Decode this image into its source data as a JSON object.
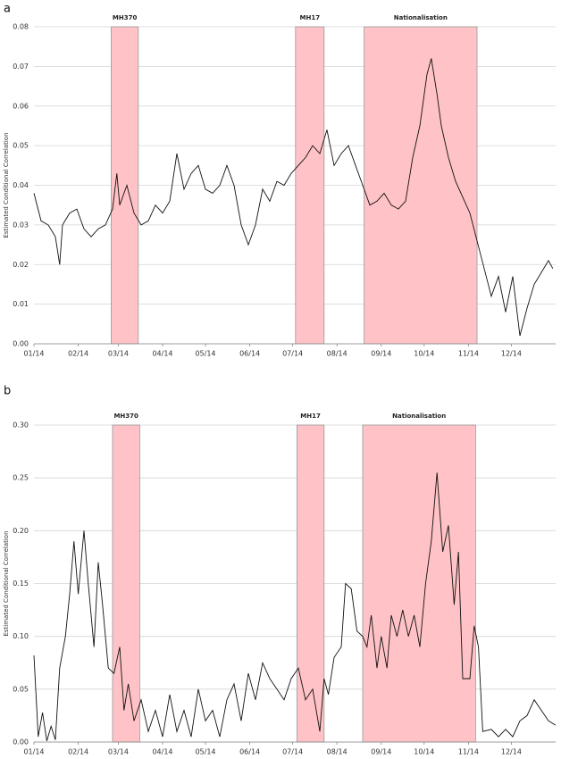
{
  "chart_data": [
    {
      "type": "line",
      "panel_label": "a",
      "ylabel": "Estimated Conditional Correlation",
      "xlim": [
        0,
        365
      ],
      "xticks": [
        {
          "value": 0,
          "label": "01/14"
        },
        {
          "value": 31,
          "label": "02/14"
        },
        {
          "value": 59,
          "label": "03/14"
        },
        {
          "value": 90,
          "label": "04/14"
        },
        {
          "value": 120,
          "label": "05/14"
        },
        {
          "value": 151,
          "label": "06/14"
        },
        {
          "value": 181,
          "label": "07/14"
        },
        {
          "value": 212,
          "label": "08/14"
        },
        {
          "value": 243,
          "label": "09/14"
        },
        {
          "value": 273,
          "label": "10/14"
        },
        {
          "value": 304,
          "label": "11/14"
        },
        {
          "value": 334,
          "label": "12/14"
        }
      ],
      "ylim": [
        0,
        0.08
      ],
      "yticks": [
        {
          "value": 0,
          "label": "0.00"
        },
        0.01,
        0.02,
        0.03,
        0.04,
        0.05,
        0.06,
        0.07,
        0.08
      ],
      "grid": true,
      "color": "#111111",
      "region_color": "#ffc2c6",
      "regions": [
        {
          "label": "MH370",
          "start": 54,
          "end": 73
        },
        {
          "label": "MH17",
          "start": 183,
          "end": 203
        },
        {
          "label": "Nationalisation",
          "start": 231,
          "end": 310
        }
      ],
      "x": [
        0,
        5,
        10,
        15,
        18,
        20,
        25,
        30,
        35,
        40,
        45,
        50,
        55,
        58,
        60,
        65,
        70,
        75,
        80,
        85,
        90,
        95,
        100,
        105,
        110,
        115,
        120,
        125,
        130,
        135,
        140,
        145,
        150,
        155,
        160,
        165,
        170,
        175,
        180,
        185,
        190,
        195,
        200,
        205,
        210,
        215,
        220,
        225,
        230,
        235,
        240,
        245,
        250,
        255,
        260,
        265,
        270,
        275,
        278,
        282,
        285,
        290,
        295,
        300,
        305,
        310,
        315,
        320,
        325,
        330,
        335,
        340,
        345,
        350,
        355,
        360,
        363
      ],
      "values": [
        0.038,
        0.031,
        0.03,
        0.027,
        0.02,
        0.03,
        0.033,
        0.034,
        0.029,
        0.027,
        0.029,
        0.03,
        0.034,
        0.043,
        0.035,
        0.04,
        0.033,
        0.03,
        0.031,
        0.035,
        0.033,
        0.036,
        0.048,
        0.039,
        0.043,
        0.045,
        0.039,
        0.038,
        0.04,
        0.045,
        0.04,
        0.03,
        0.025,
        0.03,
        0.039,
        0.036,
        0.041,
        0.04,
        0.043,
        0.045,
        0.047,
        0.05,
        0.048,
        0.054,
        0.045,
        0.048,
        0.05,
        0.045,
        0.04,
        0.035,
        0.036,
        0.038,
        0.035,
        0.034,
        0.036,
        0.047,
        0.055,
        0.068,
        0.072,
        0.063,
        0.055,
        0.047,
        0.041,
        0.037,
        0.033,
        0.026,
        0.019,
        0.012,
        0.017,
        0.008,
        0.017,
        0.002,
        0.009,
        0.015,
        0.018,
        0.021,
        0.019
      ]
    },
    {
      "type": "line",
      "panel_label": "b",
      "ylabel": "Estimated Conditional Correlation",
      "xlim": [
        0,
        365
      ],
      "xticks": [
        {
          "value": 0,
          "label": "01/14"
        },
        {
          "value": 31,
          "label": "02/14"
        },
        {
          "value": 59,
          "label": "03/14"
        },
        {
          "value": 90,
          "label": "04/14"
        },
        {
          "value": 120,
          "label": "05/14"
        },
        {
          "value": 151,
          "label": "06/14"
        },
        {
          "value": 181,
          "label": "07/14"
        },
        {
          "value": 212,
          "label": "08/14"
        },
        {
          "value": 243,
          "label": "09/14"
        },
        {
          "value": 273,
          "label": "10/14"
        },
        {
          "value": 304,
          "label": "11/14"
        },
        {
          "value": 334,
          "label": "12/14"
        }
      ],
      "ylim": [
        0,
        0.3
      ],
      "yticks": [
        {
          "value": 0,
          "label": "0.00"
        },
        0.05,
        {
          "value": 0.1,
          "label": "0.10"
        },
        0.15,
        {
          "value": 0.2,
          "label": "0.20"
        },
        0.25,
        {
          "value": 0.3,
          "label": "0.30"
        }
      ],
      "grid": true,
      "color": "#111111",
      "region_color": "#ffc2c6",
      "regions": [
        {
          "label": "MH370",
          "start": 55,
          "end": 74
        },
        {
          "label": "MH17",
          "start": 184,
          "end": 203
        },
        {
          "label": "Nationalisation",
          "start": 230,
          "end": 309
        }
      ],
      "x": [
        0,
        3,
        6,
        9,
        12,
        15,
        18,
        22,
        25,
        28,
        31,
        35,
        38,
        42,
        45,
        48,
        52,
        56,
        60,
        63,
        66,
        70,
        75,
        80,
        85,
        90,
        95,
        100,
        105,
        110,
        115,
        120,
        125,
        130,
        135,
        140,
        145,
        150,
        155,
        160,
        165,
        170,
        175,
        180,
        185,
        190,
        195,
        200,
        203,
        206,
        210,
        215,
        218,
        222,
        226,
        230,
        233,
        236,
        240,
        243,
        247,
        250,
        254,
        258,
        262,
        266,
        270,
        274,
        278,
        282,
        286,
        290,
        294,
        297,
        300,
        305,
        308,
        311,
        314,
        320,
        325,
        330,
        335,
        340,
        345,
        350,
        355,
        360,
        365
      ],
      "values": [
        0.082,
        0.005,
        0.028,
        0.001,
        0.015,
        0.002,
        0.07,
        0.1,
        0.14,
        0.19,
        0.14,
        0.2,
        0.15,
        0.09,
        0.17,
        0.13,
        0.07,
        0.065,
        0.09,
        0.03,
        0.055,
        0.02,
        0.04,
        0.01,
        0.03,
        0.005,
        0.045,
        0.01,
        0.03,
        0.005,
        0.05,
        0.02,
        0.03,
        0.005,
        0.04,
        0.055,
        0.02,
        0.065,
        0.04,
        0.075,
        0.06,
        0.05,
        0.04,
        0.06,
        0.07,
        0.04,
        0.05,
        0.01,
        0.06,
        0.045,
        0.08,
        0.09,
        0.15,
        0.145,
        0.105,
        0.1,
        0.09,
        0.12,
        0.07,
        0.1,
        0.07,
        0.12,
        0.1,
        0.125,
        0.1,
        0.12,
        0.09,
        0.15,
        0.19,
        0.255,
        0.18,
        0.205,
        0.13,
        0.18,
        0.06,
        0.06,
        0.11,
        0.09,
        0.01,
        0.012,
        0.005,
        0.012,
        0.005,
        0.02,
        0.025,
        0.04,
        0.03,
        0.02,
        0.016
      ]
    }
  ]
}
